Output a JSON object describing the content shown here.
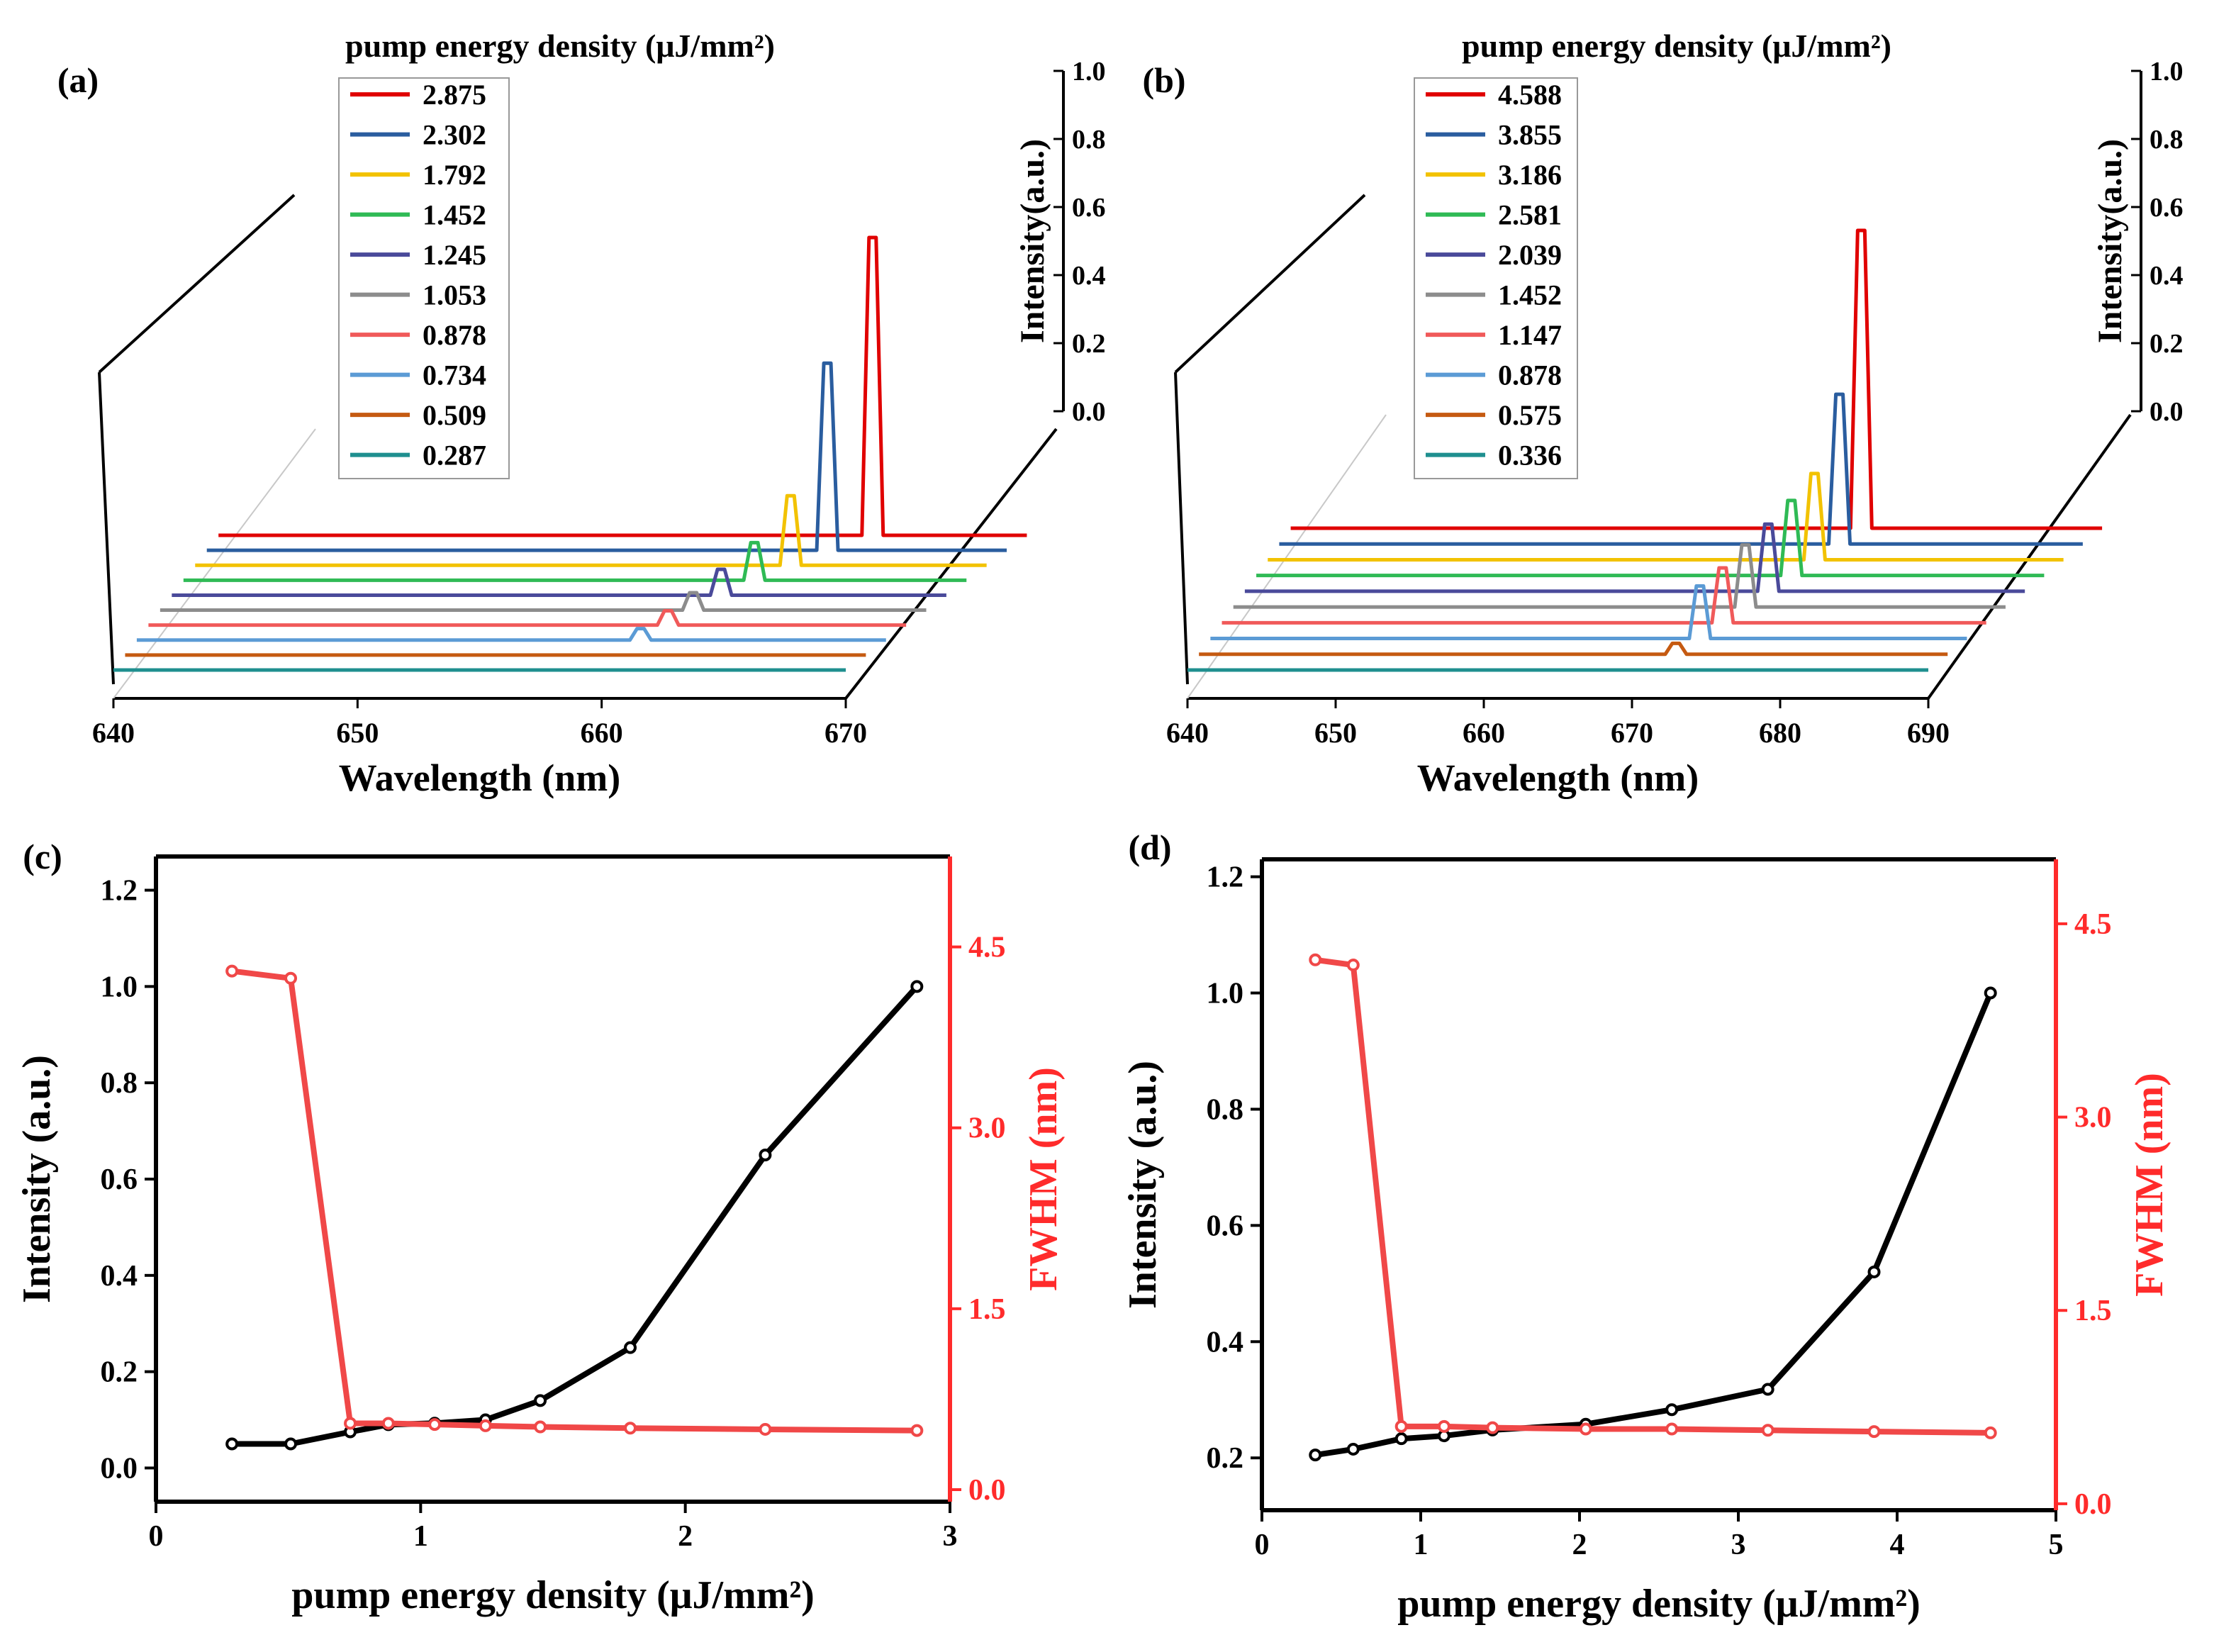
{
  "colors": {
    "axis": "#000000",
    "intensity_line": "#000000",
    "fwhm_line": "#f04848",
    "fwhm_axis": "#ff2b2b",
    "floor_grid": "#c8c8c8"
  },
  "chart_data": [
    {
      "panel": "(a)",
      "type": "waterfall-line",
      "legend_title": "pump energy density (μJ/mm²)",
      "xlabel": "Wavelength (nm)",
      "zlabel": "Intensity(a.u.)",
      "xlim": [
        640,
        670
      ],
      "xticks": [
        "640",
        "650",
        "660",
        "670"
      ],
      "zlim": [
        0,
        1
      ],
      "zticks": [
        "0.0",
        "0.2",
        "0.4",
        "0.6",
        "0.8",
        "1.0"
      ],
      "series": [
        {
          "name": "2.875",
          "color": "#e00000",
          "peak_nm": 664.3,
          "intensity": 1.0
        },
        {
          "name": "2.302",
          "color": "#2a5d9f",
          "peak_nm": 663.3,
          "intensity": 0.65
        },
        {
          "name": "1.792",
          "color": "#f2c200",
          "peak_nm": 662.6,
          "intensity": 0.25
        },
        {
          "name": "1.452",
          "color": "#2fba55",
          "peak_nm": 661.9,
          "intensity": 0.14
        },
        {
          "name": "1.245",
          "color": "#4a4a9a",
          "peak_nm": 661.3,
          "intensity": 0.1
        },
        {
          "name": "1.053",
          "color": "#8c8c8c",
          "peak_nm": 660.9,
          "intensity": 0.07
        },
        {
          "name": "0.878",
          "color": "#f05a5a",
          "peak_nm": 660.6,
          "intensity": 0.06
        },
        {
          "name": "0.734",
          "color": "#5b9bd5",
          "peak_nm": 660.2,
          "intensity": 0.05
        },
        {
          "name": "0.509",
          "color": "#c55a11",
          "peak_nm": 659.8,
          "intensity": 0.0
        },
        {
          "name": "0.287",
          "color": "#1f8f8f",
          "peak_nm": 659.5,
          "intensity": 0.0
        }
      ]
    },
    {
      "panel": "(b)",
      "type": "waterfall-line",
      "legend_title": "pump energy density (μJ/mm²)",
      "xlabel": "Wavelength (nm)",
      "zlabel": "Intensity(a.u.)",
      "xlim": [
        640,
        690
      ],
      "xticks": [
        "640",
        "650",
        "660",
        "670",
        "680",
        "690"
      ],
      "zlim": [
        0,
        1
      ],
      "zticks": [
        "0.0",
        "0.2",
        "0.4",
        "0.6",
        "0.8",
        "1.0"
      ],
      "series": [
        {
          "name": "4.588",
          "color": "#e00000",
          "peak_nm": 675.2,
          "intensity": 1.0
        },
        {
          "name": "3.855",
          "color": "#2a5d9f",
          "peak_nm": 674.9,
          "intensity": 0.52
        },
        {
          "name": "3.186",
          "color": "#f2c200",
          "peak_nm": 674.4,
          "intensity": 0.31
        },
        {
          "name": "2.581",
          "color": "#2fba55",
          "peak_nm": 674.0,
          "intensity": 0.28
        },
        {
          "name": "2.039",
          "color": "#4a4a9a",
          "peak_nm": 673.6,
          "intensity": 0.26
        },
        {
          "name": "1.452",
          "color": "#8c8c8c",
          "peak_nm": 673.2,
          "intensity": 0.25
        },
        {
          "name": "1.147",
          "color": "#f05a5a",
          "peak_nm": 672.8,
          "intensity": 0.23
        },
        {
          "name": "0.878",
          "color": "#5b9bd5",
          "peak_nm": 672.4,
          "intensity": 0.23
        },
        {
          "name": "0.575",
          "color": "#c55a11",
          "peak_nm": 671.9,
          "intensity": 0.05
        },
        {
          "name": "0.336",
          "color": "#1f8f8f",
          "peak_nm": 671.5,
          "intensity": 0.0
        }
      ]
    },
    {
      "panel": "(c)",
      "type": "line",
      "xlabel": "pump energy density (μJ/mm²)",
      "ylabel": "Intensity  (a.u.)",
      "y2label": "FWHM (nm)",
      "xlim": [
        0,
        3
      ],
      "xticks": [
        "0",
        "1",
        "2",
        "3"
      ],
      "ylim": [
        -0.07,
        1.27
      ],
      "yticks": [
        "0.0",
        "0.2",
        "0.4",
        "0.6",
        "0.8",
        "1.0",
        "1.2"
      ],
      "y2lim": [
        -0.1,
        5.25
      ],
      "y2ticks": [
        "0.0",
        "1.5",
        "3.0",
        "4.5"
      ],
      "series": [
        {
          "name": "Intensity",
          "axis": "left",
          "x": [
            0.287,
            0.509,
            0.734,
            0.878,
            1.053,
            1.245,
            1.452,
            1.792,
            2.302,
            2.875
          ],
          "y": [
            0.05,
            0.05,
            0.075,
            0.09,
            0.093,
            0.1,
            0.14,
            0.25,
            0.65,
            1.0
          ]
        },
        {
          "name": "FWHM",
          "axis": "right",
          "x": [
            0.287,
            0.509,
            0.734,
            0.878,
            1.053,
            1.245,
            1.452,
            1.792,
            2.302,
            2.875
          ],
          "y": [
            4.3,
            4.24,
            0.55,
            0.55,
            0.54,
            0.53,
            0.52,
            0.51,
            0.5,
            0.49
          ]
        }
      ]
    },
    {
      "panel": "(d)",
      "type": "line",
      "xlabel": "pump energy density (μJ/mm²)",
      "ylabel": "Intensity  (a.u.)",
      "y2label": "FWHM (nm)",
      "xlim": [
        0,
        5
      ],
      "xticks": [
        "0",
        "1",
        "2",
        "3",
        "4",
        "5"
      ],
      "ylim": [
        0.11,
        1.23
      ],
      "yticks": [
        "0.2",
        "0.4",
        "0.6",
        "0.8",
        "1.0",
        "1.2"
      ],
      "y2lim": [
        -0.05,
        5.0
      ],
      "y2ticks": [
        "0.0",
        "1.5",
        "3.0",
        "4.5"
      ],
      "series": [
        {
          "name": "Intensity",
          "axis": "left",
          "x": [
            0.336,
            0.575,
            0.878,
            1.147,
            1.452,
            2.039,
            2.581,
            3.186,
            3.855,
            4.588
          ],
          "y": [
            0.205,
            0.215,
            0.233,
            0.238,
            0.248,
            0.258,
            0.283,
            0.318,
            0.52,
            1.0
          ]
        },
        {
          "name": "FWHM",
          "axis": "right",
          "x": [
            0.336,
            0.575,
            0.878,
            1.147,
            1.452,
            2.039,
            2.581,
            3.186,
            3.855,
            4.588
          ],
          "y": [
            4.22,
            4.18,
            0.6,
            0.6,
            0.59,
            0.58,
            0.58,
            0.57,
            0.56,
            0.55
          ]
        }
      ]
    }
  ]
}
